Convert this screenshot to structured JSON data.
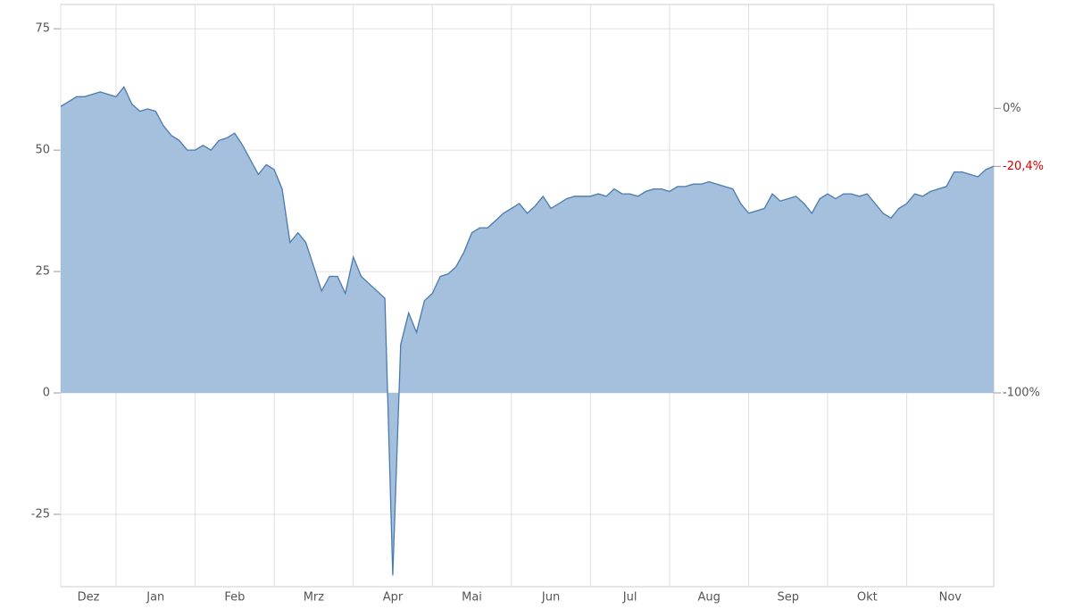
{
  "chart_data": {
    "type": "area",
    "categories": [
      "Dez",
      null,
      null,
      null,
      null,
      null,
      null,
      "Jan",
      null,
      null,
      null,
      null,
      null,
      null,
      null,
      null,
      null,
      "Feb",
      null,
      null,
      null,
      null,
      null,
      null,
      null,
      null,
      null,
      "Mrz",
      null,
      null,
      null,
      null,
      null,
      null,
      null,
      null,
      null,
      "Apr",
      null,
      null,
      null,
      null,
      null,
      null,
      null,
      null,
      null,
      "Mai",
      null,
      null,
      null,
      null,
      null,
      null,
      null,
      null,
      null,
      "Jun",
      null,
      null,
      null,
      null,
      null,
      null,
      null,
      null,
      null,
      "Jul",
      null,
      null,
      null,
      null,
      null,
      null,
      null,
      null,
      null,
      "Aug",
      null,
      null,
      null,
      null,
      null,
      null,
      null,
      null,
      null,
      "Sep",
      null,
      null,
      null,
      null,
      null,
      null,
      null,
      null,
      null,
      "Okt",
      null,
      null,
      null,
      null,
      null,
      null,
      null,
      null,
      null,
      "Nov",
      null,
      null,
      null,
      null,
      null,
      null,
      null,
      null,
      null,
      null,
      null
    ],
    "series": [
      {
        "color": "#4a7ab0",
        "fill": "#a4c0dc",
        "values": [
          59,
          60,
          61,
          61,
          61.5,
          62,
          61.5,
          61,
          63,
          59.5,
          58,
          58.5,
          58,
          55,
          53,
          52,
          50,
          50,
          51,
          50,
          52,
          52.5,
          53.5,
          51,
          48,
          45,
          47,
          46,
          42,
          31,
          33,
          31,
          26,
          21,
          24,
          24,
          20.5,
          28,
          24,
          22.5,
          21,
          19.5,
          -37.6,
          10,
          16.5,
          12.5,
          19,
          20.5,
          24,
          24.5,
          26,
          29,
          33,
          34,
          34,
          35.5,
          37,
          38,
          39,
          37,
          38.5,
          40.5,
          38,
          39,
          40,
          40.5,
          40.5,
          40.5,
          41,
          40.5,
          42,
          41,
          41,
          40.5,
          41.5,
          42,
          42,
          41.5,
          42.5,
          42.5,
          43,
          43,
          43.5,
          43,
          42.5,
          42,
          39,
          37,
          37.5,
          38,
          41,
          39.5,
          40,
          40.5,
          39,
          37,
          40,
          41,
          40,
          41,
          41,
          40.5,
          41,
          39,
          37,
          36,
          38,
          39,
          41,
          40.5,
          41.5,
          42,
          42.5,
          45.5,
          45.5,
          45,
          44.5,
          46,
          46.7
        ]
      }
    ],
    "ylim": [
      -39.9,
      80
    ],
    "yticks": [
      -25,
      0,
      25,
      50,
      75
    ],
    "y2lim": [
      -168.1,
      36.5
    ],
    "y2ticks": [
      {
        "value": 0,
        "label": "0%"
      },
      {
        "value": -20.4,
        "label": "-20,4%"
      },
      {
        "value": -100,
        "label": "-100%"
      }
    ],
    "y2tick_colors": [
      "#555555",
      "#dd0000",
      "#555555"
    ],
    "grid": true
  }
}
